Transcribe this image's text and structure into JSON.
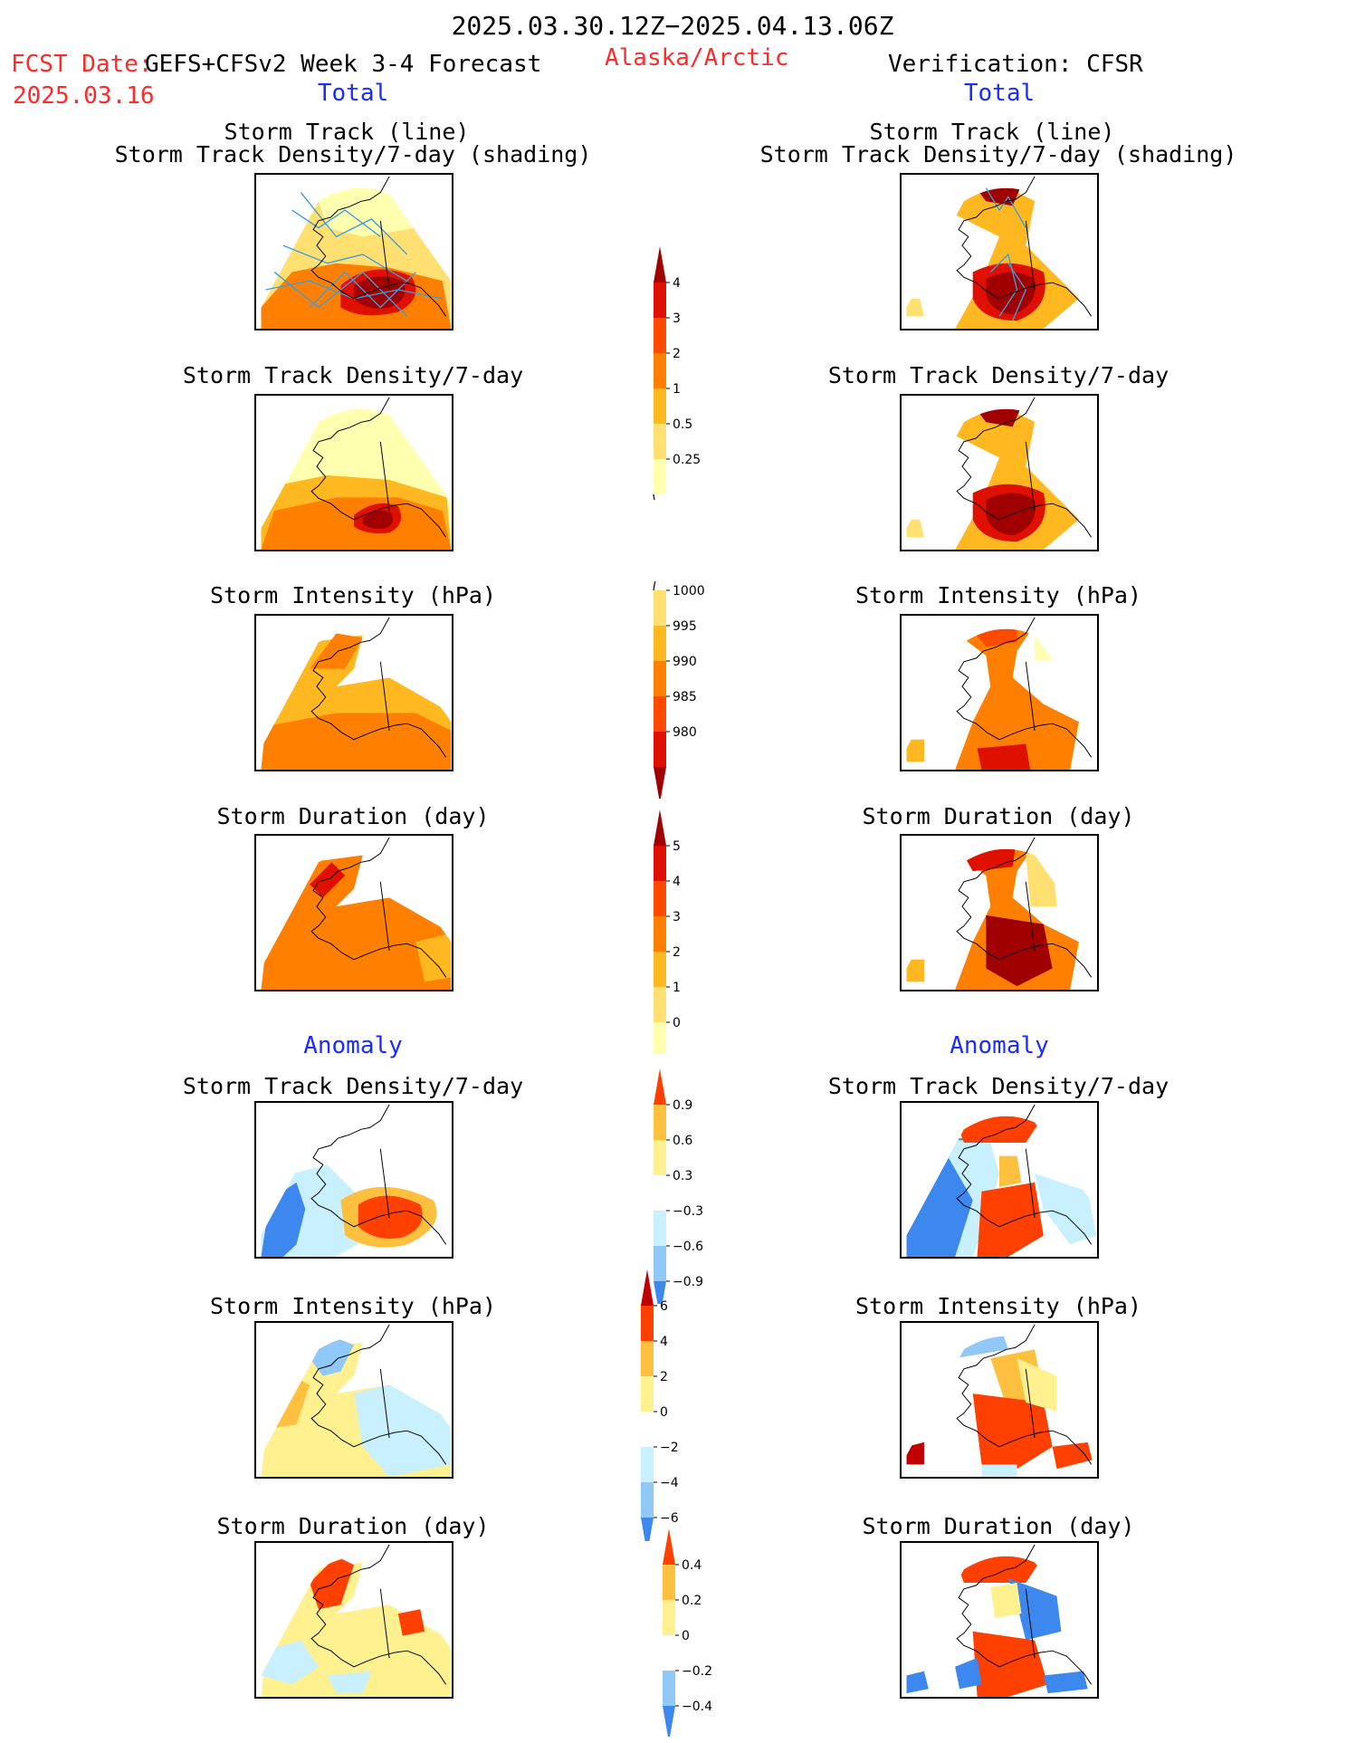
{
  "header": {
    "title": "2025.03.30.12Z−2025.04.13.06Z",
    "fcst_label": "FCST Date:",
    "fcst_model": "GEFS+CFSv2 Week 3-4 Forecast",
    "fcst_date": "2025.03.16",
    "region": "Alaska/Arctic",
    "verification": "Verification: CFSR"
  },
  "columns": {
    "left_total": "Total",
    "right_total": "Total",
    "left_anomaly": "Anomaly",
    "right_anomaly": "Anomaly"
  },
  "panel_titles": {
    "track_line": "Storm Track (line)",
    "track_density_shading": "Storm Track Density/7-day (shading)",
    "track_density": "Storm Track Density/7-day",
    "intensity": "Storm Intensity (hPa)",
    "duration": "Storm Duration (day)"
  },
  "colors": {
    "title_red": "#ff2a2a",
    "label_blue": "#1a2cff",
    "seq": [
      "#ffffb0",
      "#ffe070",
      "#ffb820",
      "#ff8000",
      "#ff4a00",
      "#e01000",
      "#a00000"
    ],
    "div": [
      "#1850d0",
      "#3c88ee",
      "#90c8f8",
      "#c8f0ff",
      "#ffffff",
      "#fff090",
      "#ffc040",
      "#ff9000",
      "#ff4000",
      "#c00000"
    ]
  },
  "chart_data": [
    {
      "type": "heatmap",
      "title": "Storm Track Density/7-day",
      "colorbar_ticks": [
        "4",
        "3",
        "2",
        "1",
        "0.5",
        "0.25"
      ]
    },
    {
      "type": "heatmap",
      "title": "Storm Intensity (hPa)",
      "colorbar_ticks": [
        "1000",
        "995",
        "990",
        "985",
        "980"
      ]
    },
    {
      "type": "heatmap",
      "title": "Storm Duration (day)",
      "colorbar_ticks": [
        "5",
        "4",
        "3",
        "2",
        "1",
        "0"
      ]
    },
    {
      "type": "heatmap",
      "title": "Anomaly Storm Track Density/7-day",
      "colorbar_ticks": [
        "0.9",
        "0.6",
        "0.3",
        "−0.3",
        "−0.6",
        "−0.9"
      ]
    },
    {
      "type": "heatmap",
      "title": "Anomaly Storm Intensity (hPa)",
      "colorbar_ticks": [
        "6",
        "4",
        "2",
        "0",
        "−2",
        "−4",
        "−6"
      ]
    },
    {
      "type": "heatmap",
      "title": "Anomaly Storm Duration (day)",
      "colorbar_ticks": [
        "0.4",
        "0.2",
        "0",
        "−0.2",
        "−0.4"
      ]
    }
  ]
}
